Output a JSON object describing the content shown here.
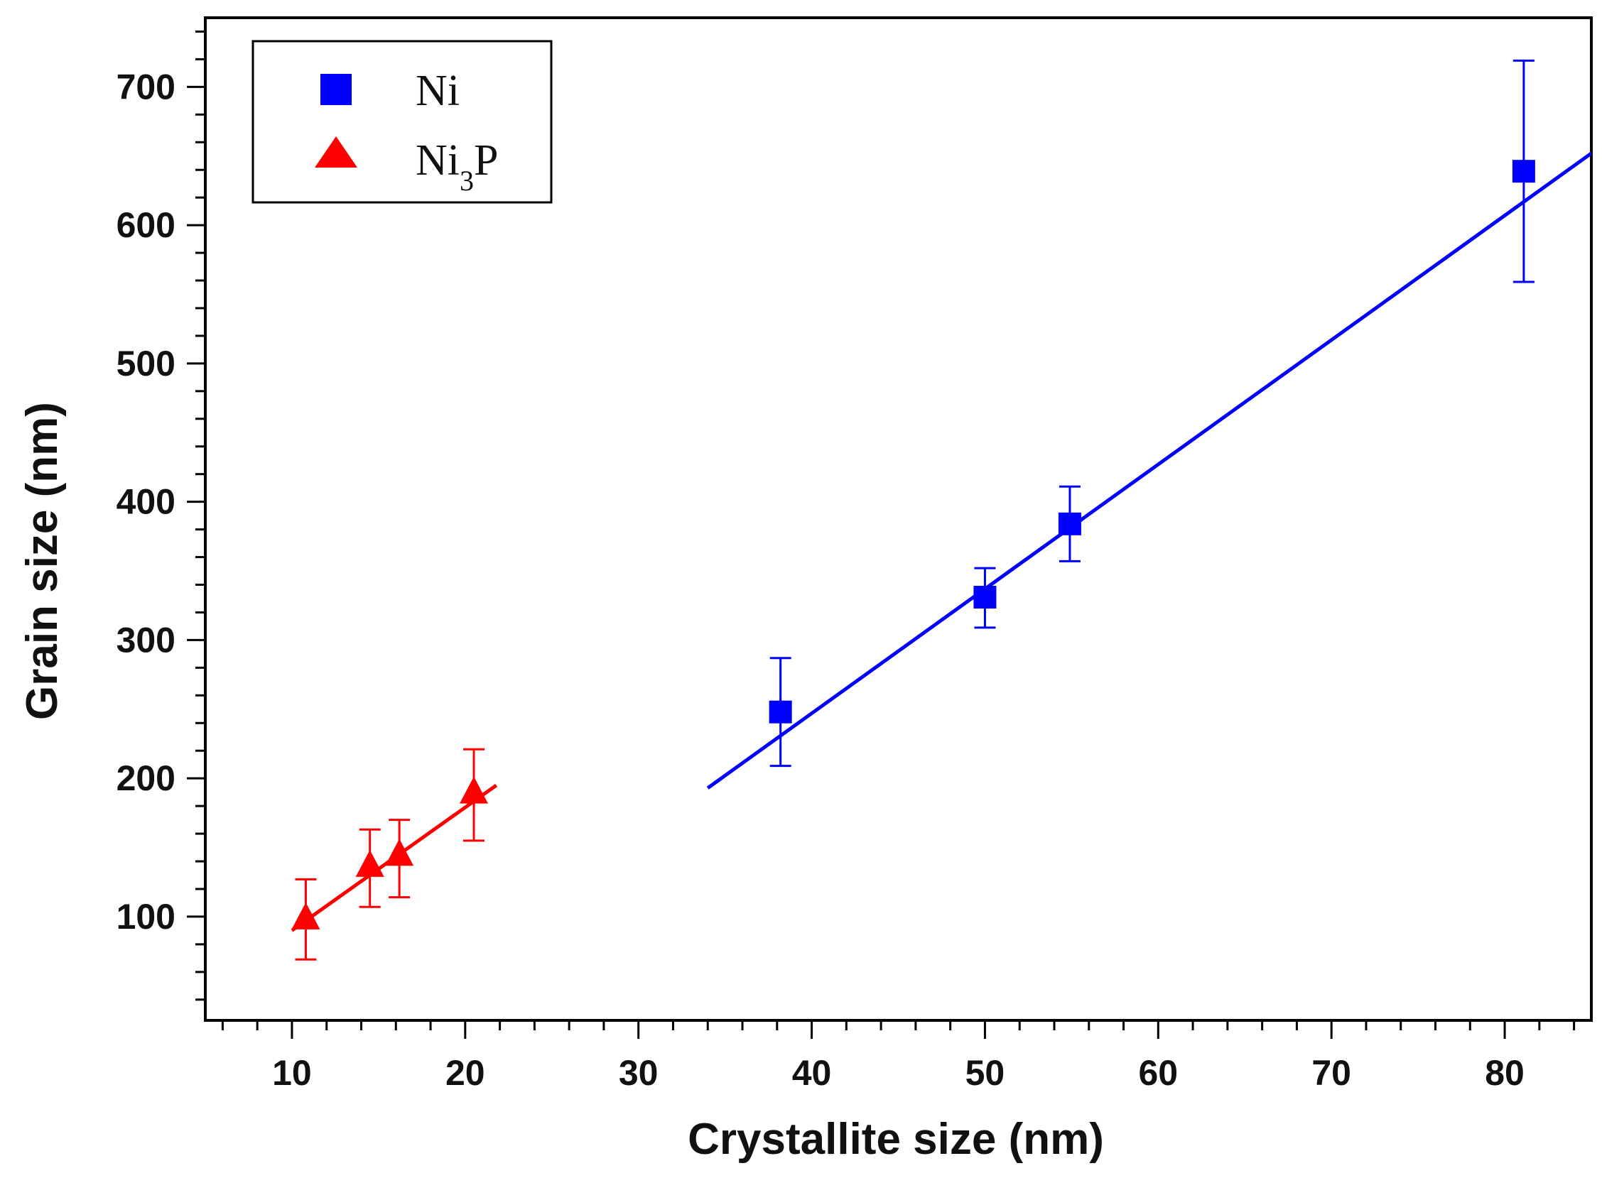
{
  "chart_data": {
    "type": "scatter",
    "xlabel": "Crystallite size (nm)",
    "ylabel": "Grain size (nm)",
    "xlim": [
      5,
      85
    ],
    "ylim": [
      25,
      750
    ],
    "xticks": [
      10,
      20,
      30,
      40,
      50,
      60,
      70,
      80
    ],
    "xtick_labels": [
      "10",
      "20",
      "30",
      "40",
      "50",
      "60",
      "70",
      "80"
    ],
    "yticks": [
      100,
      200,
      300,
      400,
      500,
      600,
      700
    ],
    "ytick_labels": [
      "100",
      "200",
      "300",
      "400",
      "500",
      "600",
      "700"
    ],
    "x_minor_step": 2,
    "y_minor_step": 20,
    "legend_position": "top-left",
    "series": [
      {
        "name": "Ni",
        "legend_label": "Ni",
        "marker": "square",
        "color": "#0000ff",
        "x": [
          38.2,
          50.0,
          54.9,
          81.1
        ],
        "y": [
          248,
          331,
          384,
          639
        ],
        "err_low": [
          209,
          309,
          357,
          559
        ],
        "err_high": [
          287,
          352,
          411,
          719
        ],
        "fit": {
          "x": [
            34.0,
            85.0
          ],
          "y": [
            193,
            652
          ]
        }
      },
      {
        "name": "Ni3P",
        "legend_label": "Ni",
        "legend_subscript": "3",
        "legend_suffix": "P",
        "marker": "triangle",
        "color": "#ff0000",
        "x": [
          10.8,
          14.5,
          16.2,
          20.5
        ],
        "y": [
          99,
          137,
          145,
          190
        ],
        "err_low": [
          69,
          107,
          114,
          155
        ],
        "err_high": [
          127,
          163,
          170,
          221
        ],
        "fit": {
          "x": [
            10.0,
            21.8
          ],
          "y": [
            90,
            195
          ]
        }
      }
    ]
  }
}
